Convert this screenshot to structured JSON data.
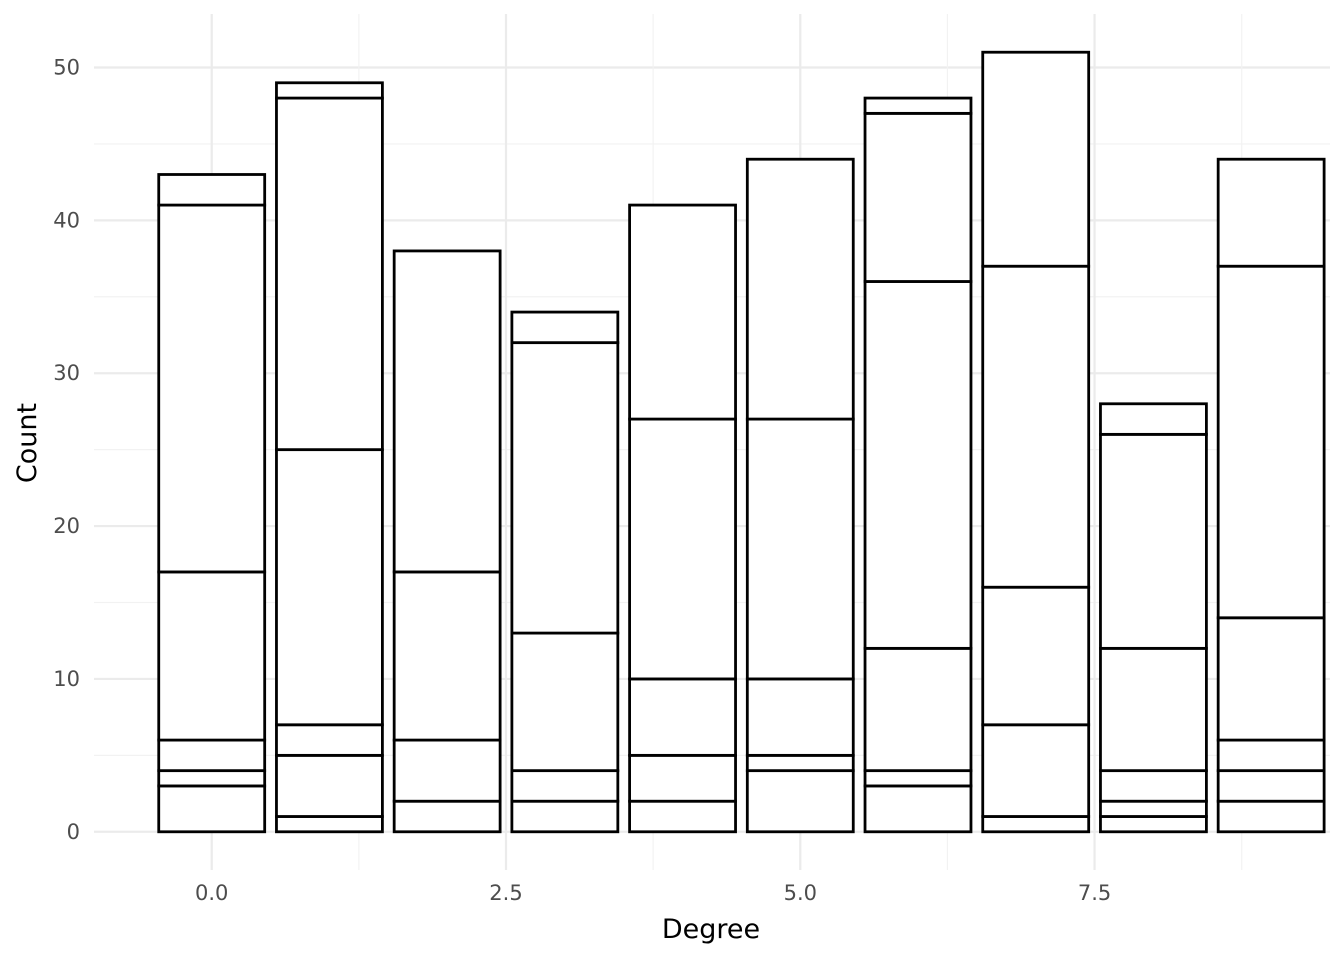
{
  "chart_data": {
    "type": "bar",
    "stacked": true,
    "xlabel": "Degree",
    "ylabel": "Count",
    "x": [
      0,
      1,
      2,
      3,
      4,
      5,
      6,
      7,
      8,
      9
    ],
    "xlim": [
      -1.0,
      9.5
    ],
    "ylim": [
      -2.5,
      53.5
    ],
    "x_ticks": [
      0.0,
      2.5,
      5.0,
      7.5
    ],
    "x_tick_labels": [
      "0.0",
      "2.5",
      "5.0",
      "7.5"
    ],
    "y_ticks": [
      0,
      10,
      20,
      30,
      40,
      50
    ],
    "y_tick_labels": [
      "0",
      "10",
      "20",
      "30",
      "40",
      "50"
    ],
    "bar_width": 0.9,
    "segment_boundaries": [
      [
        3,
        4,
        6,
        17,
        41,
        43
      ],
      [
        1,
        5,
        7,
        25,
        48,
        49
      ],
      [
        2,
        6,
        17,
        38
      ],
      [
        2,
        4,
        13,
        32,
        34
      ],
      [
        2,
        5,
        10,
        27,
        41
      ],
      [
        4,
        5,
        10,
        27,
        44
      ],
      [
        3,
        4,
        12,
        36,
        47,
        48
      ],
      [
        1,
        7,
        16,
        37,
        51
      ],
      [
        1,
        2,
        4,
        12,
        26,
        28
      ],
      [
        2,
        4,
        6,
        14,
        37,
        44
      ]
    ],
    "totals": [
      43,
      49,
      38,
      34,
      41,
      44,
      48,
      51,
      28,
      44
    ],
    "grid": true,
    "legend": "none",
    "colors": {
      "bar_fill": "#ffffff",
      "bar_stroke": "#000000",
      "grid_major": "#ebebeb",
      "grid_minor": "#f2f2f2",
      "tick_text": "#4d4d4d",
      "title_text": "#000000"
    }
  }
}
